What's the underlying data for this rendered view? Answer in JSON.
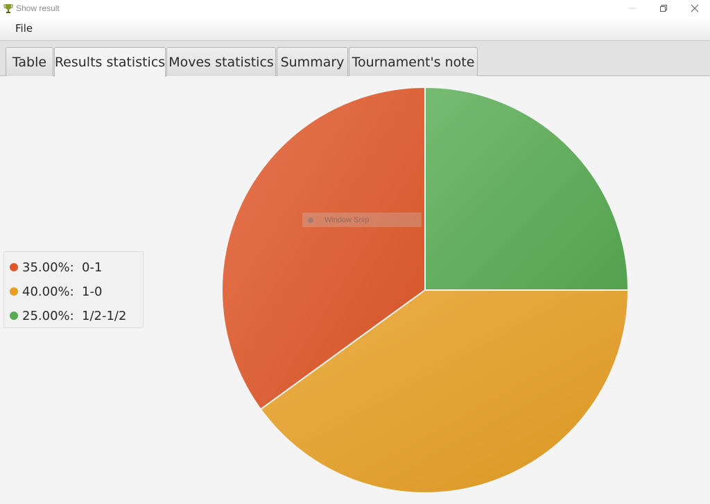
{
  "window": {
    "title": "Show result",
    "icon": "trophy-icon"
  },
  "menu": {
    "items": [
      {
        "label": "File"
      }
    ]
  },
  "tabs": [
    {
      "label": "Table",
      "selected": false
    },
    {
      "label": "Results statistics",
      "selected": true
    },
    {
      "label": "Moves statistics",
      "selected": false
    },
    {
      "label": "Summary",
      "selected": false
    },
    {
      "label": "Tournament's note",
      "selected": false
    }
  ],
  "overlay": {
    "text": "Window Snip"
  },
  "chart_data": {
    "type": "pie",
    "slices": [
      {
        "label": "0-1",
        "percent_label": "35.00%:",
        "value": 35.0,
        "color": "#e0582a"
      },
      {
        "label": "1-0",
        "percent_label": "40.00%:",
        "value": 40.0,
        "color": "#e8a023"
      },
      {
        "label": "1/2-1/2",
        "percent_label": "25.00%:",
        "value": 25.0,
        "color": "#58ac53"
      }
    ],
    "legend_position": "left"
  }
}
